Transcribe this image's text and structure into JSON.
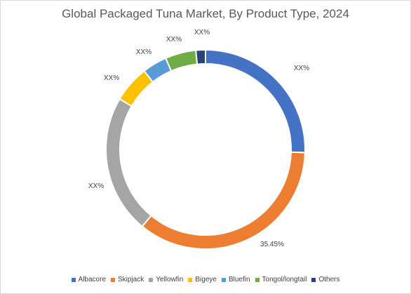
{
  "chart_data": {
    "type": "pie",
    "title": "Global Packaged Tuna Market, By Product Type, 2024",
    "categories": [
      "Albacore",
      "Skipjack",
      "Yellowfin",
      "Bigeye",
      "Bluefin",
      "Tongol/longtail",
      "Others"
    ],
    "values": [
      25.5,
      35.45,
      22.5,
      6.0,
      4.0,
      5.0,
      1.55
    ],
    "data_labels": [
      "XX%",
      "35.45%",
      "XX%",
      "XX%",
      "XX%",
      "XX%",
      "XX%"
    ],
    "colors": [
      "#4472c4",
      "#ed7d31",
      "#a5a5a5",
      "#ffc000",
      "#5b9bd5",
      "#70ad47",
      "#264478"
    ],
    "donut": true,
    "legend_position": "bottom"
  }
}
